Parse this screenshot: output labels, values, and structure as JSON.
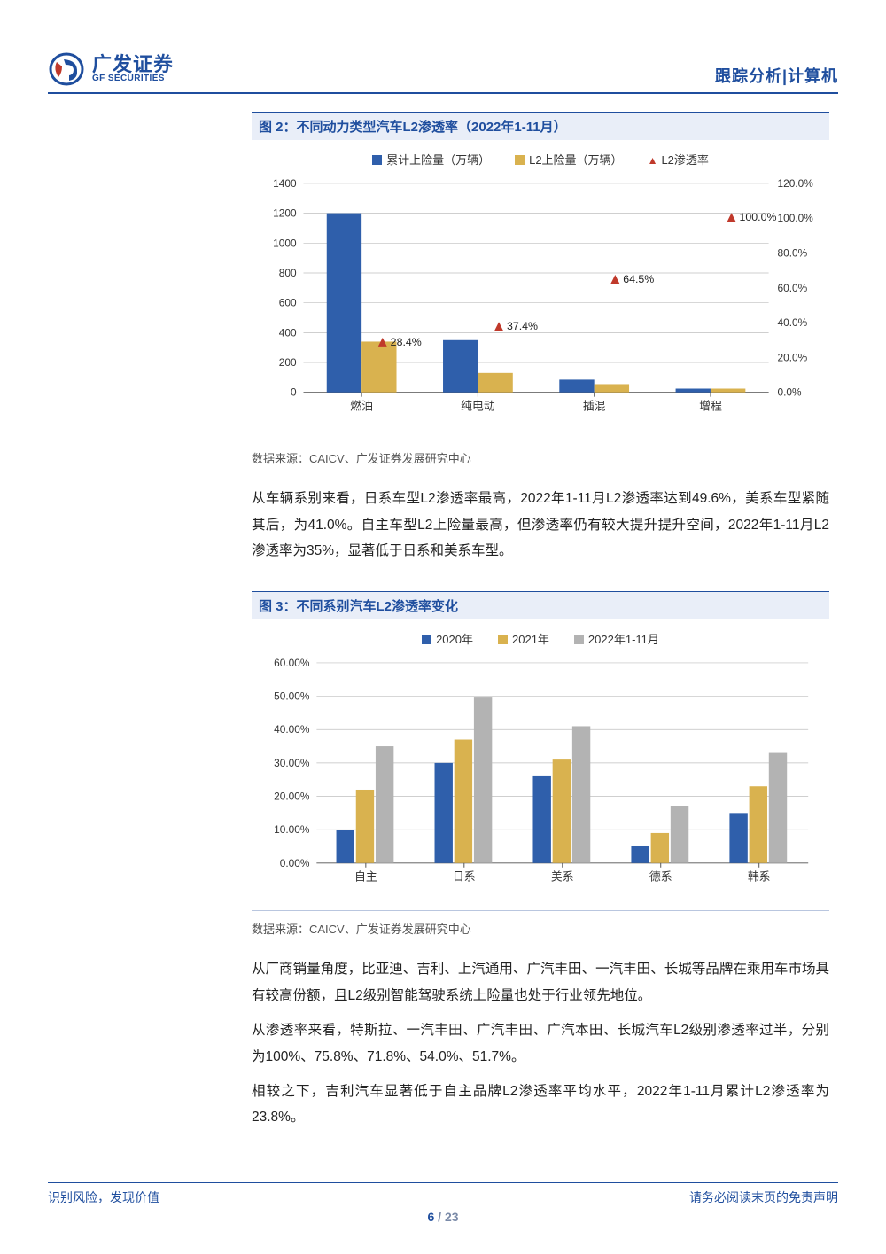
{
  "header": {
    "logo_cn": "广发证券",
    "logo_en": "GF SECURITIES",
    "doc_type": "跟踪分析|计算机"
  },
  "colors": {
    "brand_blue": "#1f4e9e",
    "series_blue": "#2f5fab",
    "series_yellow": "#d9b24f",
    "series_grey": "#b3b3b3",
    "series_red": "#c0392b",
    "grid": "#bfbfbf",
    "bg": "#ffffff"
  },
  "fig2": {
    "title": "图 2：不同动力类型汽车L2渗透率（2022年1-11月）",
    "legend": [
      {
        "swatch": "square",
        "color": "#2f5fab",
        "label": "累计上险量（万辆）"
      },
      {
        "swatch": "square",
        "color": "#d9b24f",
        "label": "L2上险量（万辆）"
      },
      {
        "swatch": "triangle",
        "color": "#c0392b",
        "label": "L2渗透率"
      }
    ],
    "left_axis": {
      "min": 0,
      "max": 1400,
      "step": 200
    },
    "right_axis": {
      "min": 0,
      "max": 120,
      "step": 20,
      "suffix": "%"
    },
    "categories": [
      "燃油",
      "纯电动",
      "插混",
      "增程"
    ],
    "bars_primary": [
      1200,
      350,
      85,
      25
    ],
    "bars_secondary": [
      340,
      130,
      55,
      25
    ],
    "rate_values": [
      28.4,
      37.4,
      64.5,
      100.0
    ],
    "rate_labels": [
      "28.4%",
      "37.4%",
      "64.5%",
      "100.0%"
    ],
    "bar_width": 0.3,
    "source": "数据来源：CAICV、广发证券发展研究中心"
  },
  "para1": "从车辆系别来看，日系车型L2渗透率最高，2022年1-11月L2渗透率达到49.6%，美系车型紧随其后，为41.0%。自主车型L2上险量最高，但渗透率仍有较大提升提升空间，2022年1-11月L2渗透率为35%，显著低于日系和美系车型。",
  "fig3": {
    "title": "图 3：不同系别汽车L2渗透率变化",
    "legend": [
      {
        "swatch": "square",
        "color": "#2f5fab",
        "label": "2020年"
      },
      {
        "swatch": "square",
        "color": "#d9b24f",
        "label": "2021年"
      },
      {
        "swatch": "square",
        "color": "#b3b3b3",
        "label": "2022年1-11月"
      }
    ],
    "y_axis": {
      "min": 0,
      "max": 60,
      "step": 10,
      "suffix": "%",
      "decimals": 2
    },
    "categories": [
      "自主",
      "日系",
      "美系",
      "德系",
      "韩系"
    ],
    "series": [
      {
        "name": "2020年",
        "color": "#2f5fab",
        "values": [
          10,
          30,
          26,
          5,
          15
        ]
      },
      {
        "name": "2021年",
        "color": "#d9b24f",
        "values": [
          22,
          37,
          31,
          9,
          23
        ]
      },
      {
        "name": "2022年1-11月",
        "color": "#b3b3b3",
        "values": [
          35,
          49.6,
          41,
          17,
          33
        ]
      }
    ],
    "bar_width": 0.2,
    "source": "数据来源：CAICV、广发证券发展研究中心"
  },
  "para2": "从厂商销量角度，比亚迪、吉利、上汽通用、广汽丰田、一汽丰田、长城等品牌在乘用车市场具有较高份额，且L2级别智能驾驶系统上险量也处于行业领先地位。",
  "para3": "从渗透率来看，特斯拉、一汽丰田、广汽丰田、广汽本田、长城汽车L2级别渗透率过半，分别为100%、75.8%、71.8%、54.0%、51.7%。",
  "para4": "相较之下，吉利汽车显著低于自主品牌L2渗透率平均水平，2022年1-11月累计L2渗透率为23.8%。",
  "footer": {
    "left": "识别风险，发现价值",
    "right": "请务必阅读末页的免责声明",
    "page_current": "6",
    "page_sep": " / ",
    "page_total": "23"
  }
}
